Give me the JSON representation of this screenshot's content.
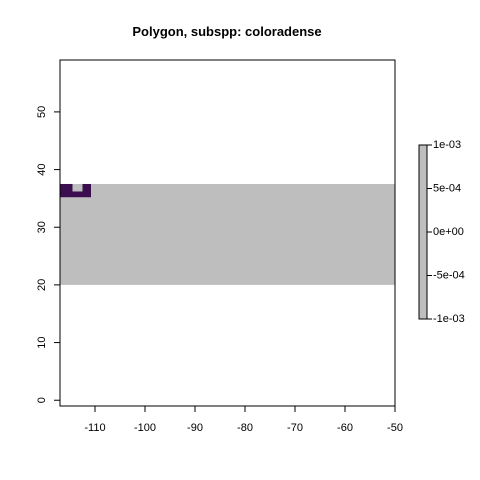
{
  "chart_data": {
    "type": "heatmap",
    "title": "Polygon, subspp: coloradense",
    "xlabel": "",
    "ylabel": "",
    "xlim": [
      -117,
      -50
    ],
    "ylim": [
      -1,
      59
    ],
    "x_ticks": [
      -110,
      -100,
      -90,
      -80,
      -70,
      -60,
      -50
    ],
    "y_ticks": [
      0,
      10,
      20,
      30,
      40,
      50
    ],
    "band": {
      "xmin": -117,
      "xmax": -50,
      "ymin": 20,
      "ymax": 37.5,
      "color": "#bebebe"
    },
    "polygon_cells": [
      {
        "xmin": -117,
        "xmax": -114.5,
        "ymin": 35.2,
        "ymax": 37.5
      },
      {
        "xmin": -114.5,
        "xmax": -112.5,
        "ymin": 35.2,
        "ymax": 36.2
      },
      {
        "xmin": -112.5,
        "xmax": -110.8,
        "ymin": 35.2,
        "ymax": 37.5
      }
    ],
    "polygon_color": "#3b0f4f",
    "legend": {
      "position": "right",
      "min": -0.001,
      "max": 0.001,
      "ticks": [
        "1e-03",
        "5e-04",
        "0e+00",
        "-5e-04",
        "-1e-03"
      ],
      "color": "#bebebe"
    }
  }
}
